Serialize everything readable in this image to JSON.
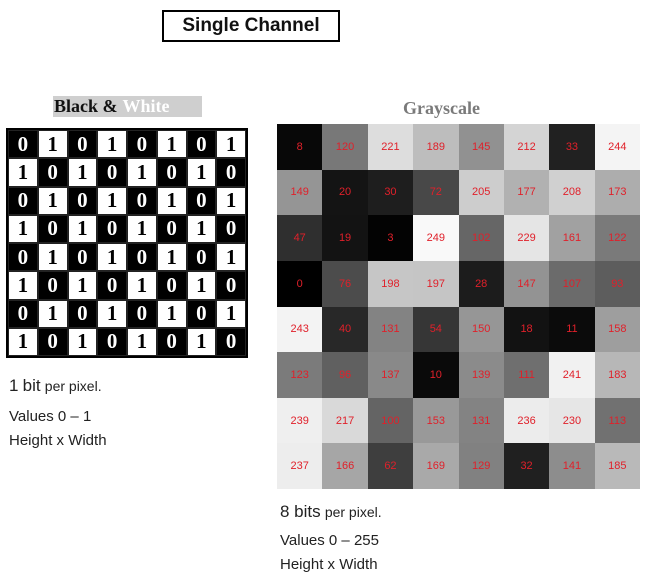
{
  "title": "Single Channel",
  "bw": {
    "title_black": "Black &",
    "title_white": "White",
    "grid": [
      [
        "0",
        "1",
        "0",
        "1",
        "0",
        "1",
        "0",
        "1"
      ],
      [
        "1",
        "0",
        "1",
        "0",
        "1",
        "0",
        "1",
        "0"
      ],
      [
        "0",
        "1",
        "0",
        "1",
        "0",
        "1",
        "0",
        "1"
      ],
      [
        "1",
        "0",
        "1",
        "0",
        "1",
        "0",
        "1",
        "0"
      ],
      [
        "0",
        "1",
        "0",
        "1",
        "0",
        "1",
        "0",
        "1"
      ],
      [
        "1",
        "0",
        "1",
        "0",
        "1",
        "0",
        "1",
        "0"
      ],
      [
        "0",
        "1",
        "0",
        "1",
        "0",
        "1",
        "0",
        "1"
      ],
      [
        "1",
        "0",
        "1",
        "0",
        "1",
        "0",
        "1",
        "0"
      ]
    ],
    "caption_bits_num": "1",
    "caption_bits_word": "bit",
    "caption_bits_rest": "per pixel.",
    "caption_values": "Values 0 – 1",
    "caption_dims": "Height x Width"
  },
  "gray": {
    "title": "Grayscale",
    "grid": [
      [
        8,
        120,
        221,
        189,
        145,
        212,
        33,
        244
      ],
      [
        149,
        20,
        30,
        72,
        205,
        177,
        208,
        173
      ],
      [
        47,
        19,
        3,
        249,
        102,
        229,
        161,
        122
      ],
      [
        0,
        76,
        198,
        197,
        28,
        147,
        107,
        93
      ],
      [
        243,
        40,
        131,
        54,
        150,
        18,
        11,
        158
      ],
      [
        123,
        96,
        137,
        10,
        139,
        111,
        241,
        183
      ],
      [
        239,
        217,
        100,
        153,
        131,
        236,
        230,
        113
      ],
      [
        237,
        166,
        62,
        169,
        129,
        32,
        141,
        185
      ]
    ],
    "caption_bits_main": "8 bits",
    "caption_bits_rest": "per pixel.",
    "caption_values": "Values 0 – 255",
    "caption_dims": "Height x Width"
  }
}
